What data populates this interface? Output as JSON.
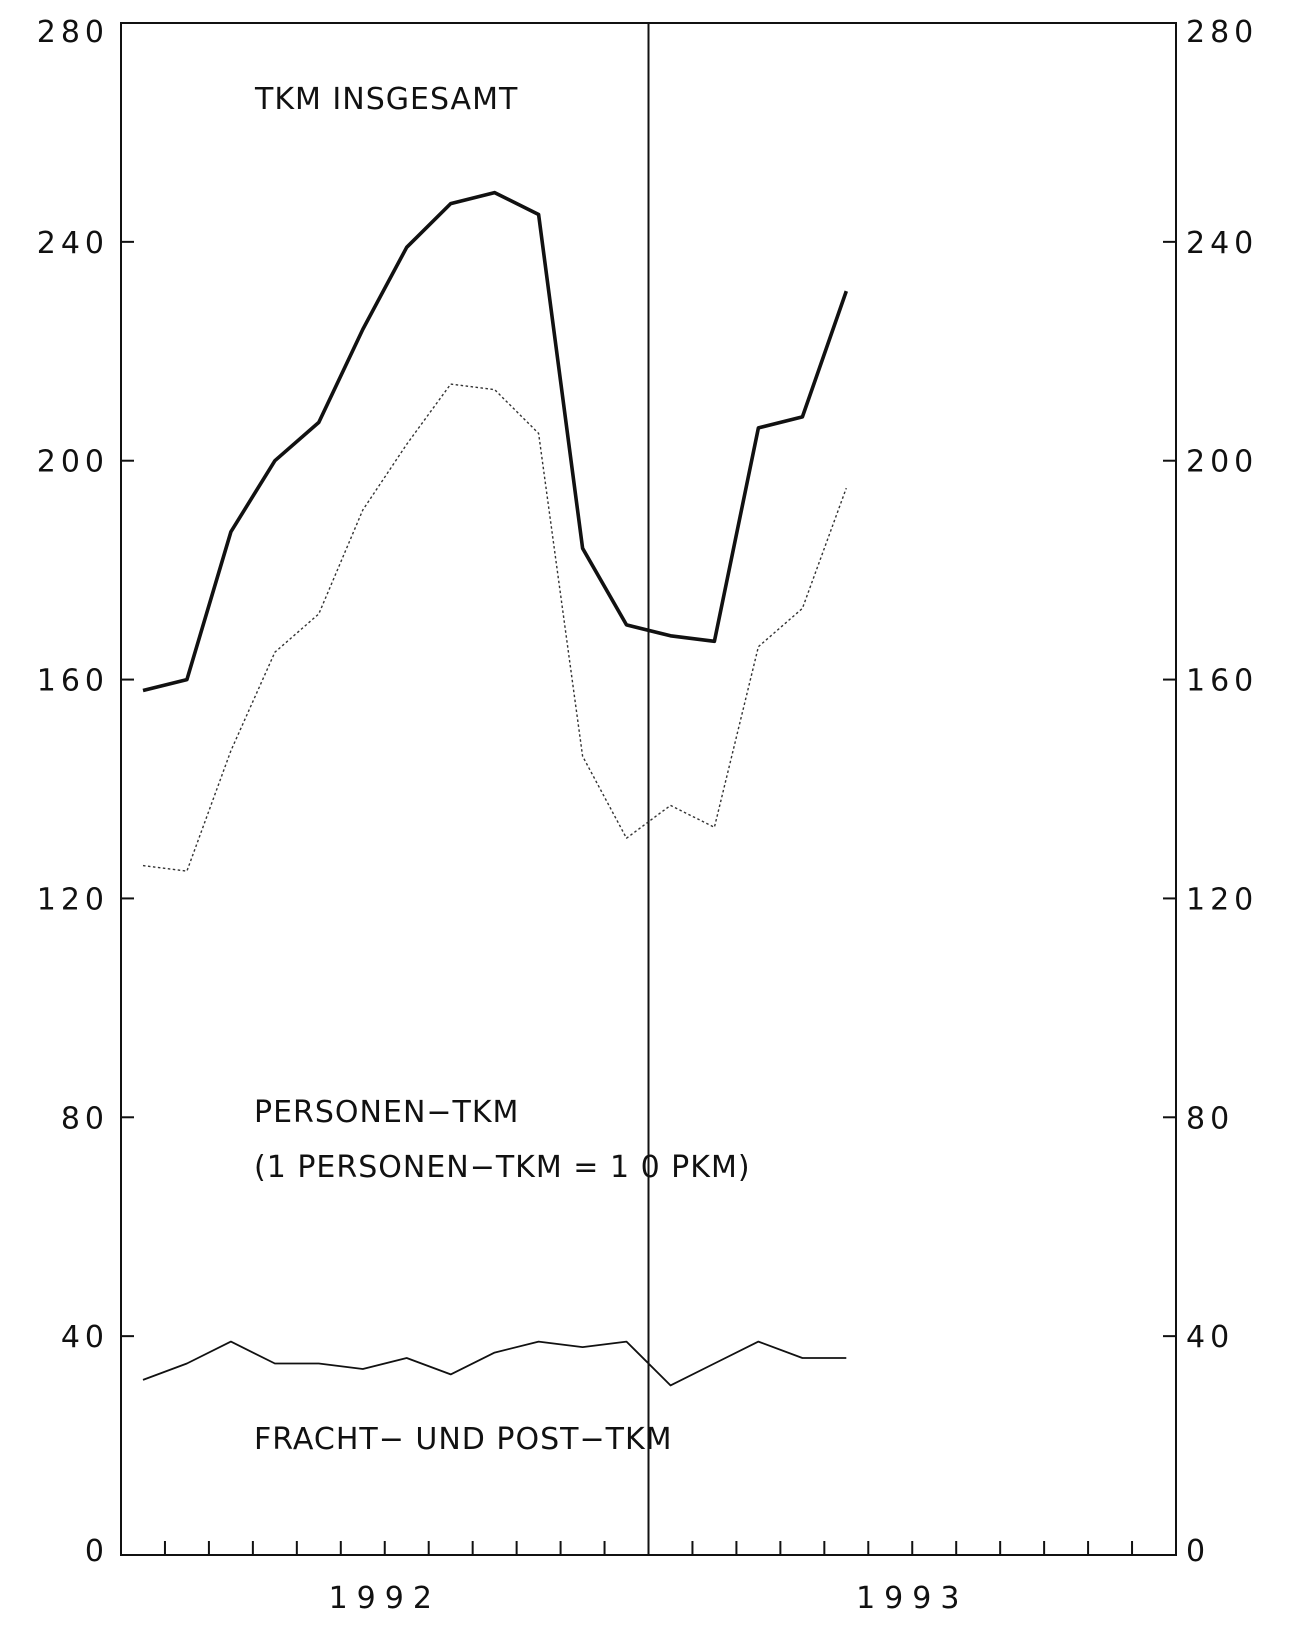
{
  "chart_data": {
    "type": "line",
    "title": "",
    "xlabel": "",
    "ylabel": "",
    "ylim": [
      0,
      280
    ],
    "yticks": [
      0,
      40,
      80,
      120,
      160,
      200,
      240,
      280
    ],
    "y_axes": "left-and-right",
    "grid": false,
    "legend": "none",
    "x_period_labels": [
      "1992",
      "1993"
    ],
    "months_per_period": 12,
    "divider_after_month": 12,
    "x_months": [
      1,
      2,
      3,
      4,
      5,
      6,
      7,
      8,
      9,
      10,
      11,
      12,
      13,
      14,
      15,
      16,
      17
    ],
    "annotations": [
      {
        "text": "TKM INSGESAMT",
        "series": "total"
      },
      {
        "text": "PERSONEN−TKM",
        "series": "passenger"
      },
      {
        "text": "(1 PERSONEN−TKM = 1 0 PKM)",
        "series": "passenger"
      },
      {
        "text": "FRACHT− UND POST−TKM",
        "series": "freight"
      }
    ],
    "series": [
      {
        "id": "total",
        "style": "thick",
        "color": "#111111",
        "values": [
          158,
          160,
          187,
          200,
          207,
          224,
          239,
          247,
          249,
          245,
          184,
          170,
          168,
          167,
          206,
          208,
          231
        ]
      },
      {
        "id": "passenger",
        "style": "dotted",
        "color": "#333333",
        "values": [
          126,
          125,
          147,
          165,
          172,
          191,
          203,
          214,
          213,
          205,
          146,
          131,
          137,
          133,
          166,
          173,
          195
        ]
      },
      {
        "id": "freight",
        "style": "thin",
        "color": "#111111",
        "values": [
          32,
          35,
          39,
          35,
          35,
          34,
          36,
          33,
          37,
          39,
          38,
          39,
          31,
          35,
          39,
          36,
          36
        ]
      }
    ]
  }
}
